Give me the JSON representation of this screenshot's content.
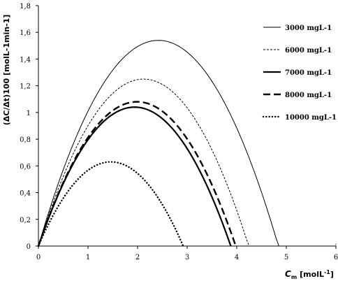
{
  "chart_data": {
    "type": "line",
    "xlabel": "C",
    "xlabel_sub": "m",
    "xlabel_unit": "[molL",
    "xlabel_exp": "-1",
    "xlabel_tail": "]",
    "ylabel": "(ΔC/Δt)100 [molL-1min-1]",
    "xlim": [
      0,
      6
    ],
    "ylim": [
      0,
      1.8
    ],
    "x_ticks": [
      "0",
      "1",
      "2",
      "3",
      "4",
      "5",
      "6"
    ],
    "y_ticks": [
      "0",
      "0,2",
      "0,4",
      "0,6",
      "0,8",
      "1",
      "1,2",
      "1,4",
      "1,6",
      "1,8"
    ],
    "grid": false,
    "legend_position": "top-right",
    "series": [
      {
        "name": "3000  mgL-1",
        "style": "thin-solid",
        "zero_end": 4.85,
        "peak_x": 2.42,
        "peak_y": 1.54
      },
      {
        "name": "6000  mgL-1",
        "style": "thin-dashed",
        "zero_end": 4.25,
        "peak_x": 2.12,
        "peak_y": 1.25
      },
      {
        "name": "7000  mgL-1",
        "style": "thick-solid",
        "zero_end": 3.88,
        "peak_x": 1.94,
        "peak_y": 1.04
      },
      {
        "name": "8000  mgL-1",
        "style": "thick-dashed",
        "zero_end": 3.98,
        "peak_x": 1.99,
        "peak_y": 1.08
      },
      {
        "name": "10000  mgL-1",
        "style": "dotted",
        "zero_end": 2.92,
        "peak_x": 1.46,
        "peak_y": 0.63
      }
    ]
  }
}
